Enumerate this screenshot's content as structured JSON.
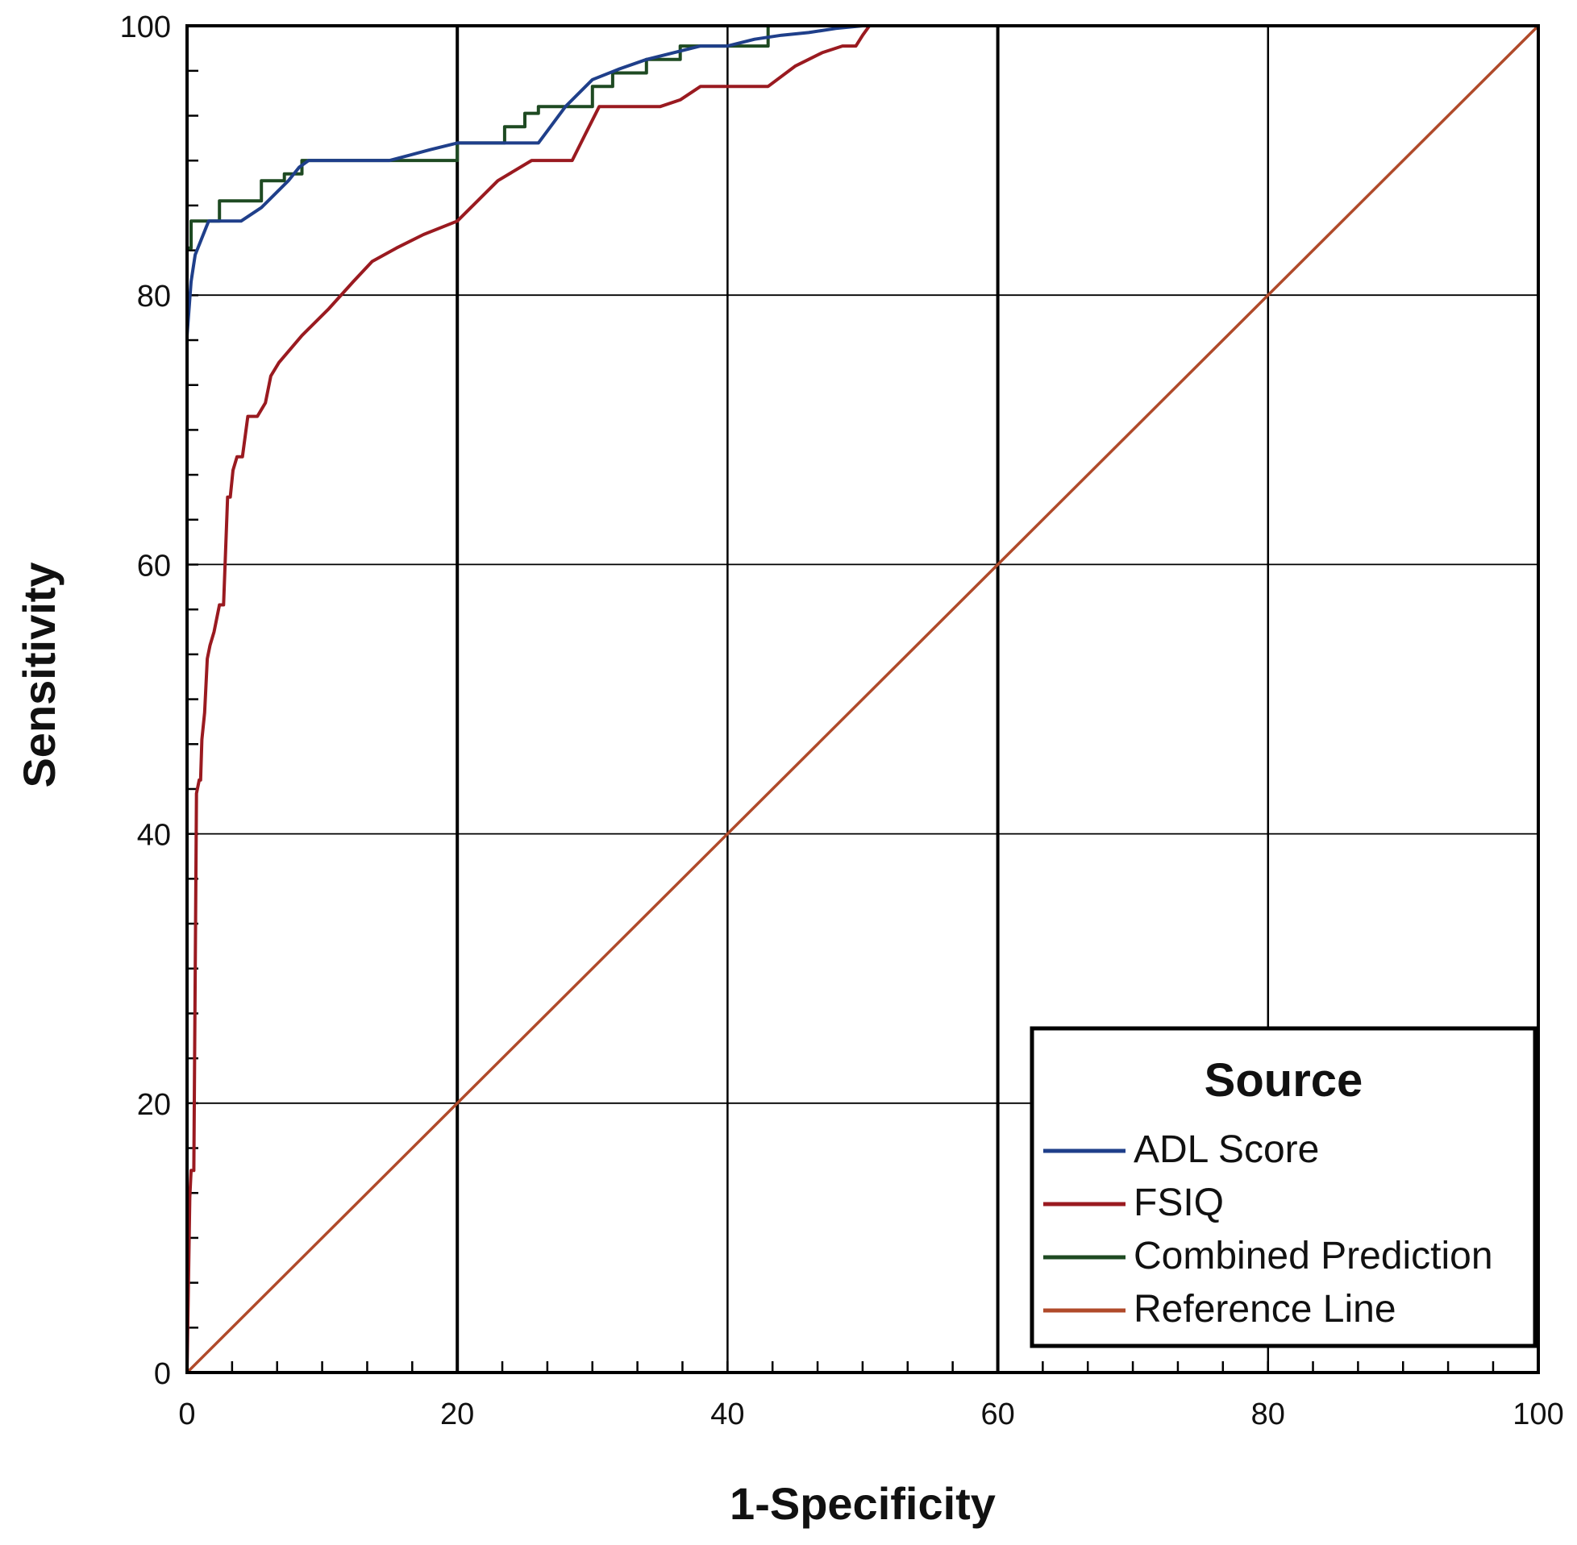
{
  "chart_data": {
    "type": "line",
    "xlabel": "1-Specificity",
    "ylabel": "Sensitivity",
    "xlim": [
      0,
      100
    ],
    "ylim": [
      0,
      100
    ],
    "x_ticks": [
      "0",
      "20",
      "40",
      "60",
      "80",
      "100"
    ],
    "y_ticks": [
      "0",
      "20",
      "40",
      "60",
      "80",
      "100"
    ],
    "grid": true,
    "legend": {
      "title": "Source",
      "position": "bottom-right"
    },
    "series": [
      {
        "name": "ADL Score",
        "color": "#1f3f8a",
        "x": [
          0,
          0.3,
          0.6,
          1.0,
          1.6,
          2.5,
          4,
          5.5,
          6.5,
          7.5,
          8.3,
          9,
          12,
          15,
          18,
          20,
          22,
          24,
          26,
          28,
          30,
          32,
          34,
          36,
          38,
          40,
          42,
          44,
          46,
          48,
          50,
          100
        ],
        "y": [
          77,
          81,
          83,
          84,
          85.5,
          85.5,
          85.5,
          86.5,
          87.5,
          88.5,
          89.5,
          90,
          90,
          90,
          90.8,
          91.3,
          91.3,
          91.3,
          91.3,
          94,
          96,
          96.8,
          97.5,
          98,
          98.5,
          98.5,
          99,
          99.3,
          99.5,
          99.8,
          100,
          100
        ]
      },
      {
        "name": "FSIQ",
        "color": "#9a1a20",
        "x": [
          0,
          0.2,
          0.3,
          0.5,
          0.7,
          0.9,
          1.0,
          1.1,
          1.3,
          1.5,
          1.7,
          2,
          2.4,
          2.7,
          3,
          3.2,
          3.4,
          3.7,
          4.1,
          4.5,
          5.2,
          5.8,
          6.2,
          6.8,
          8.5,
          10.5,
          12.3,
          13.7,
          15.5,
          17.5,
          20,
          21,
          23,
          25.5,
          26.5,
          27.5,
          28.5,
          29.5,
          30.5,
          32.5,
          35,
          36.5,
          38,
          40,
          43,
          45,
          47,
          48.5,
          49.5,
          50,
          50.5,
          100
        ],
        "y": [
          0,
          13,
          15,
          15,
          43,
          44,
          44,
          47,
          49,
          53,
          54,
          55,
          57,
          57,
          65,
          65,
          67,
          68,
          68,
          71,
          71,
          72,
          74,
          75,
          77,
          79,
          81,
          82.5,
          83.5,
          84.5,
          85.5,
          86.5,
          88.5,
          90,
          90,
          90,
          90,
          92,
          94,
          94,
          94,
          94.5,
          95.5,
          95.5,
          95.5,
          97,
          98,
          98.5,
          98.5,
          99.3,
          100,
          100
        ]
      },
      {
        "name": "Combined Prediction",
        "color": "#1e4a22",
        "x": [
          0,
          0,
          0.3,
          0.3,
          1.2,
          2.4,
          2.4,
          5.5,
          5.5,
          7.2,
          7.2,
          8.5,
          8.5,
          20,
          20,
          23.5,
          23.5,
          25,
          25,
          26,
          26,
          28.5,
          28.5,
          30,
          30,
          31.5,
          31.5,
          34,
          34,
          36.5,
          36.5,
          43,
          43,
          100
        ],
        "y": [
          0,
          83.5,
          83.5,
          85.5,
          85.5,
          85.5,
          87,
          87,
          88.5,
          88.5,
          89,
          89,
          90,
          90,
          91.3,
          91.3,
          92.5,
          92.5,
          93.5,
          93.5,
          94,
          94,
          94,
          94,
          95.5,
          95.5,
          96.5,
          96.5,
          97.5,
          97.5,
          98.5,
          98.5,
          100,
          100
        ]
      },
      {
        "name": "Reference Line",
        "color": "#b04a2a",
        "x": [
          0,
          100
        ],
        "y": [
          0,
          100
        ]
      }
    ]
  }
}
